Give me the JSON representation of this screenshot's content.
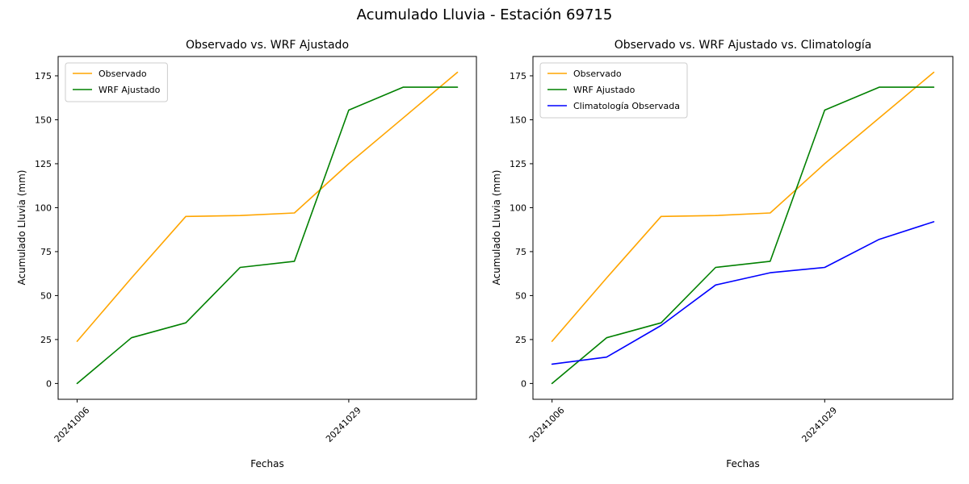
{
  "figure": {
    "title": "Acumulado Lluvia - Estación 69715"
  },
  "chart_data": [
    {
      "type": "line",
      "title": "Observado vs. WRF Ajustado",
      "xlabel": "Fechas",
      "ylabel": "Acumulado Lluvia (mm)",
      "x": [
        0,
        1,
        2,
        3,
        4,
        5,
        6,
        7
      ],
      "x_tick_positions": [
        0,
        5
      ],
      "x_tick_labels": [
        "20241006",
        "20241029"
      ],
      "y_ticks": [
        0,
        25,
        50,
        75,
        100,
        125,
        150,
        175
      ],
      "ylim": [
        -9,
        186
      ],
      "grid": false,
      "legend_position": "upper-left",
      "series": [
        {
          "name": "Observado",
          "color": "#ffa500",
          "values": [
            24,
            60,
            95,
            95.5,
            97,
            125,
            151,
            177
          ]
        },
        {
          "name": "WRF Ajustado",
          "color": "#008000",
          "values": [
            0,
            26,
            34.5,
            66,
            69.5,
            155.5,
            168.5,
            168.5
          ]
        }
      ]
    },
    {
      "type": "line",
      "title": "Observado vs. WRF Ajustado vs. Climatología",
      "xlabel": "Fechas",
      "ylabel": "Acumulado Lluvia (mm)",
      "x": [
        0,
        1,
        2,
        3,
        4,
        5,
        6,
        7
      ],
      "x_tick_positions": [
        0,
        5
      ],
      "x_tick_labels": [
        "20241006",
        "20241029"
      ],
      "y_ticks": [
        0,
        25,
        50,
        75,
        100,
        125,
        150,
        175
      ],
      "ylim": [
        -9,
        186
      ],
      "grid": false,
      "legend_position": "upper-left",
      "series": [
        {
          "name": "Observado",
          "color": "#ffa500",
          "values": [
            24,
            60,
            95,
            95.5,
            97,
            125,
            151,
            177
          ]
        },
        {
          "name": "WRF Ajustado",
          "color": "#008000",
          "values": [
            0,
            26,
            34.5,
            66,
            69.5,
            155.5,
            168.5,
            168.5
          ]
        },
        {
          "name": "Climatología Observada",
          "color": "#0000ff",
          "values": [
            11,
            15,
            33,
            56,
            63,
            66,
            82,
            92
          ]
        }
      ]
    }
  ]
}
